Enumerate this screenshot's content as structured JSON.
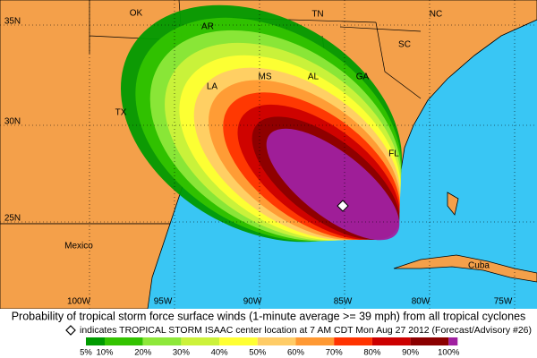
{
  "map": {
    "state_labels": [
      "OK",
      "AR",
      "TN",
      "NC",
      "SC",
      "MS",
      "AL",
      "GA",
      "LA",
      "TX",
      "FL",
      "Mexico",
      "Cuba"
    ],
    "lat_labels": [
      "35N",
      "30N",
      "25N"
    ],
    "lon_labels": [
      "100W",
      "95W",
      "90W",
      "85W",
      "80W",
      "75W"
    ]
  },
  "caption": {
    "title": "Probability of tropical storm force surface winds (1-minute average >= 39 mph) from all tropical cyclones",
    "note": "indicates TROPICAL STORM ISAAC center location at 7 AM CDT Mon Aug 27 2012 (Forecast/Advisory #26)"
  },
  "legend": {
    "labels": [
      "5%",
      "10%",
      "20%",
      "30%",
      "40%",
      "50%",
      "60%",
      "70%",
      "80%",
      "90%",
      "100%"
    ],
    "colors": [
      "#009a00",
      "#33c300",
      "#8ee83a",
      "#ccf23a",
      "#ffff33",
      "#ffcc66",
      "#ff9933",
      "#ff3300",
      "#cc0000",
      "#8b0000",
      "#a020a0"
    ]
  }
}
